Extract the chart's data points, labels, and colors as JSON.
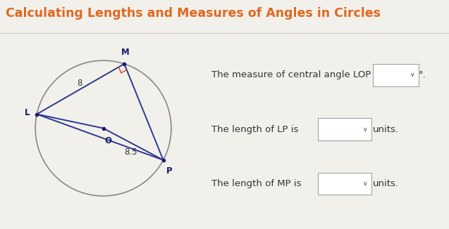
{
  "title": "Calculating Lengths and Measures of Angles in Circles",
  "title_color": "#E06820",
  "title_fontsize": 12.5,
  "bg_color": "#F2F0EA",
  "label_8": "8",
  "label_85": "8.5",
  "line_color": "#2B3990",
  "circle_color": "#888888",
  "right_angle_color": "#CC4422",
  "dot_color": "#1A1A6E",
  "text_color": "#333333",
  "question_text_1": "The measure of central angle LOP is",
  "question_text_2": "The length of LP is",
  "question_text_3": "The length of MP is",
  "units_text": "units.",
  "font_size_q": 9.5,
  "separator_color": "#CCCCCC"
}
